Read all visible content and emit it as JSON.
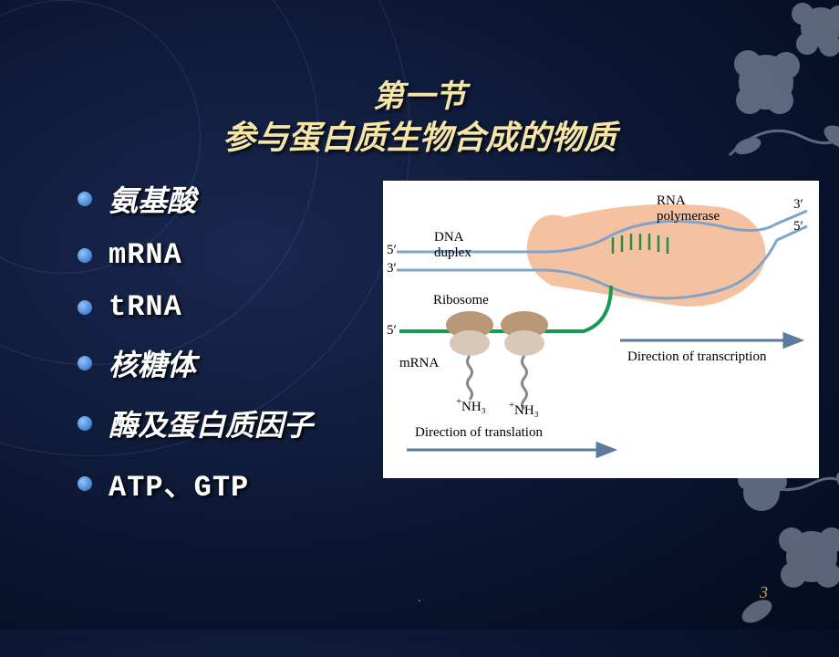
{
  "title_line1": "第一节",
  "title_line2": "参与蛋白质生物合成的物质",
  "bullets": [
    {
      "text": "氨基酸",
      "mono": false
    },
    {
      "text": "mRNA",
      "mono": true
    },
    {
      "text": "tRNA",
      "mono": true
    },
    {
      "text": "核糖体",
      "mono": false
    },
    {
      "text": "酶及蛋白质因子",
      "mono": false
    },
    {
      "text": "ATP、GTP",
      "mono": true
    }
  ],
  "diagram": {
    "labels": {
      "rna_polymerase": "RNA\npolymerase",
      "dna_duplex": "DNA\nduplex",
      "ribosome": "Ribosome",
      "mrna": "mRNA",
      "nh3_1": "NH₃",
      "nh3_2": "NH₃",
      "plus1": "+",
      "plus2": "+",
      "dir_transcription": "Direction of transcription",
      "dir_translation": "Direction of translation",
      "five_prime_1": "5′",
      "three_prime_1": "3′",
      "five_prime_2": "5′",
      "three_prime_2": "3′",
      "five_prime_3": "5′"
    },
    "colors": {
      "polymerase": "#f4c2a0",
      "dna_strand": "#7fa3c9",
      "mrna_strand": "#1a9950",
      "ribosome_outer": "#b89878",
      "ribosome_inner": "#d9c7b8",
      "peptide": "#888888",
      "arrow": "#5a7aa0",
      "nascent_rna_ticks": "#2a8a4a"
    }
  },
  "page_number": "3",
  "footer_dot": "."
}
